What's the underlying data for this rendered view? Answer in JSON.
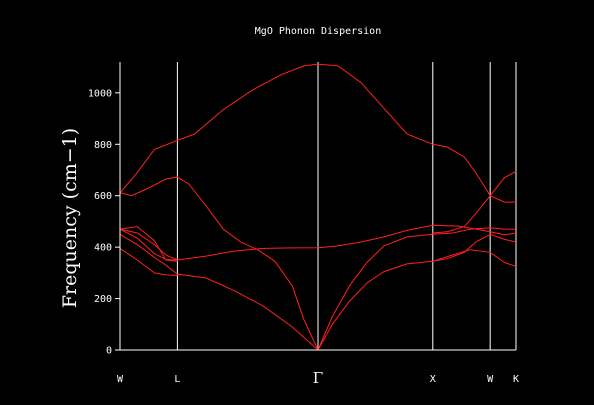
{
  "chart_data": {
    "type": "line",
    "title": "MgO Phonon Dispersion",
    "xlabel": "",
    "ylabel": "Frequency (cm−1)",
    "ylim": [
      0,
      1120
    ],
    "xlim": [
      0,
      6.9
    ],
    "yticks": [
      0,
      200,
      400,
      600,
      800,
      1000
    ],
    "high_symmetry_points": [
      {
        "label": "W",
        "x": 0
      },
      {
        "label": "L",
        "x": 1
      },
      {
        "label": "Γ",
        "x": 3.45
      },
      {
        "label": "X",
        "x": 5.45
      },
      {
        "label": "W",
        "x": 6.45
      },
      {
        "label": "K",
        "x": 6.9
      }
    ],
    "grid": false,
    "line_color": "#ff2020",
    "axis_color": "#ffffff",
    "background": "#000000",
    "series": [
      {
        "values": [
          [
            0,
            610
          ],
          [
            0.3,
            690
          ],
          [
            0.6,
            780
          ],
          [
            1,
            815
          ],
          [
            1.3,
            840
          ],
          [
            1.8,
            935
          ],
          [
            2.3,
            1010
          ],
          [
            2.8,
            1070
          ],
          [
            3.2,
            1105
          ],
          [
            3.45,
            1112
          ],
          [
            3.8,
            1105
          ],
          [
            4.2,
            1040
          ],
          [
            4.6,
            940
          ],
          [
            5,
            840
          ],
          [
            5.45,
            800
          ],
          [
            5.7,
            790
          ],
          [
            6,
            750
          ],
          [
            6.2,
            690
          ],
          [
            6.45,
            600
          ],
          [
            6.7,
            575
          ],
          [
            6.9,
            575
          ]
        ]
      },
      {
        "values": [
          [
            0,
            612
          ],
          [
            0.2,
            600
          ],
          [
            0.5,
            630
          ],
          [
            0.8,
            665
          ],
          [
            1,
            672
          ],
          [
            1.2,
            645
          ],
          [
            1.5,
            560
          ],
          [
            1.8,
            470
          ],
          [
            2.1,
            420
          ],
          [
            2.4,
            390
          ],
          [
            2.7,
            345
          ],
          [
            3,
            250
          ],
          [
            3.2,
            120
          ],
          [
            3.45,
            0
          ]
        ]
      },
      {
        "values": [
          [
            0,
            470
          ],
          [
            0.3,
            435
          ],
          [
            0.6,
            375
          ],
          [
            0.8,
            352
          ],
          [
            1,
            350
          ],
          [
            1.5,
            365
          ],
          [
            2,
            385
          ],
          [
            2.5,
            395
          ],
          [
            3,
            397
          ],
          [
            3.45,
            398
          ],
          [
            3.8,
            405
          ],
          [
            4.2,
            420
          ],
          [
            4.6,
            440
          ],
          [
            5,
            465
          ],
          [
            5.45,
            485
          ],
          [
            5.9,
            482
          ],
          [
            6.2,
            470
          ],
          [
            6.45,
            460
          ],
          [
            6.7,
            448
          ],
          [
            6.9,
            455
          ]
        ]
      },
      {
        "values": [
          [
            0,
            470
          ],
          [
            0.3,
            455
          ],
          [
            0.6,
            410
          ],
          [
            0.8,
            370
          ],
          [
            1,
            350
          ]
        ]
      },
      {
        "values": [
          [
            0,
            450
          ],
          [
            0.3,
            410
          ],
          [
            0.6,
            360
          ],
          [
            0.8,
            330
          ],
          [
            1,
            295
          ],
          [
            1.5,
            280
          ],
          [
            2,
            230
          ],
          [
            2.5,
            170
          ],
          [
            3,
            90
          ],
          [
            3.45,
            0
          ]
        ]
      },
      {
        "values": [
          [
            0,
            395
          ],
          [
            0.3,
            350
          ],
          [
            0.6,
            300
          ],
          [
            0.8,
            292
          ],
          [
            1,
            290
          ]
        ]
      },
      {
        "values": [
          [
            0,
            470
          ],
          [
            0.3,
            480
          ],
          [
            0.6,
            425
          ],
          [
            0.8,
            350
          ],
          [
            1,
            345
          ]
        ]
      },
      {
        "values": [
          [
            3.45,
            0
          ],
          [
            3.7,
            130
          ],
          [
            4,
            250
          ],
          [
            4.3,
            340
          ],
          [
            4.6,
            405
          ],
          [
            5,
            440
          ],
          [
            5.45,
            450
          ],
          [
            5.8,
            455
          ],
          [
            6.1,
            470
          ],
          [
            6.45,
            475
          ],
          [
            6.7,
            470
          ],
          [
            6.9,
            470
          ]
        ]
      },
      {
        "values": [
          [
            3.45,
            0
          ],
          [
            3.7,
            100
          ],
          [
            4,
            190
          ],
          [
            4.3,
            260
          ],
          [
            4.6,
            305
          ],
          [
            5,
            335
          ],
          [
            5.45,
            345
          ],
          [
            5.8,
            370
          ],
          [
            6.1,
            390
          ],
          [
            6.45,
            380
          ],
          [
            6.7,
            340
          ],
          [
            6.9,
            325
          ]
        ]
      },
      {
        "values": [
          [
            5.45,
            345
          ],
          [
            5.7,
            355
          ],
          [
            6,
            380
          ],
          [
            6.2,
            420
          ],
          [
            6.45,
            450
          ],
          [
            6.7,
            430
          ],
          [
            6.9,
            420
          ]
        ]
      },
      {
        "values": [
          [
            5.45,
            455
          ],
          [
            5.7,
            460
          ],
          [
            6,
            480
          ],
          [
            6.2,
            530
          ],
          [
            6.45,
            600
          ],
          [
            6.7,
            670
          ],
          [
            6.9,
            695
          ]
        ]
      }
    ]
  }
}
